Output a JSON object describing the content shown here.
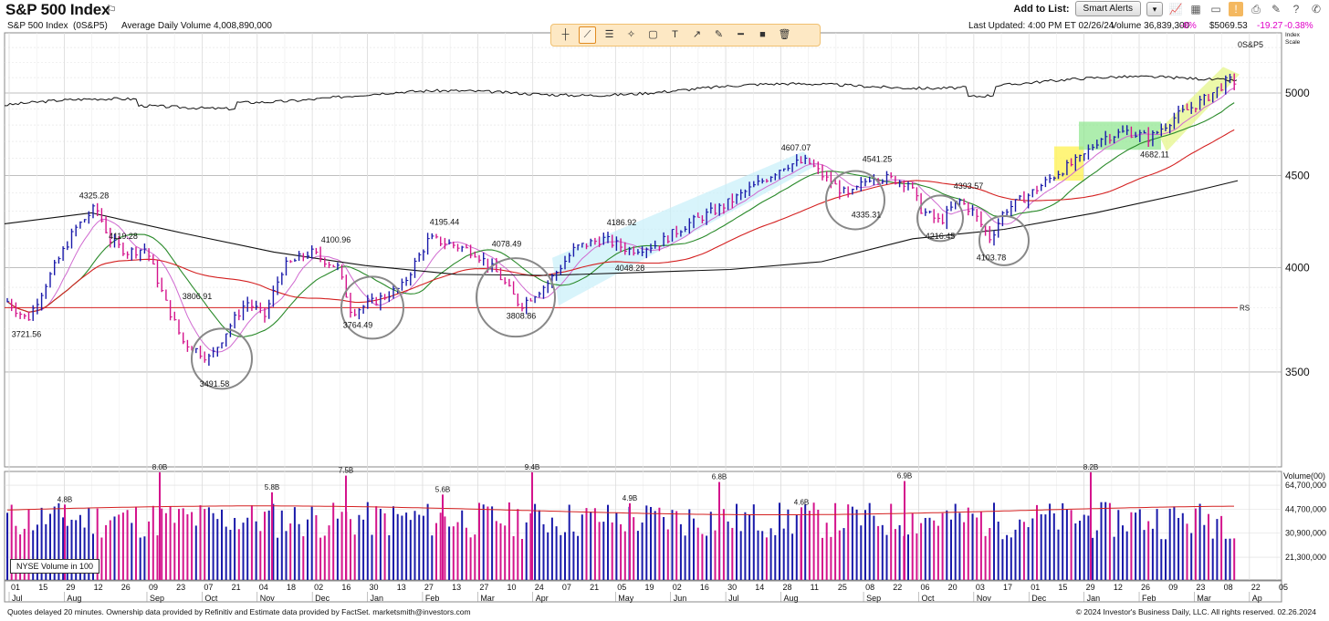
{
  "header": {
    "title": "S&P 500 Index",
    "add_to_list": "Add to List:",
    "smart_alerts": "Smart Alerts"
  },
  "info": {
    "name": "S&P 500 Index",
    "symbol": "(0S&P5)",
    "avg_volume": "Average Daily Volume 4,008,890,000",
    "updated": "Last Updated: 4:00 PM ET 02/26/24",
    "volume": "Volume 36,839,300",
    "vol_pct": "-8%",
    "price": "$5069.53",
    "change": "-19.27",
    "change_pct": "-0.38%"
  },
  "colors": {
    "up": "#1a1aaa",
    "down": "#d4148c",
    "ma10": "#d06ad0",
    "ma21": "#2a8a2a",
    "ma50": "#d42020",
    "ma200": "#111111",
    "accent": "#ff00ff"
  },
  "chart_data": {
    "type": "candlestick",
    "y_scale": "log",
    "ylim": [
      3100,
      5400
    ],
    "y_ticks": [
      "5000",
      "4500",
      "4000",
      "3500"
    ],
    "scale_labels": [
      "0S&P5",
      "Index",
      "Scale"
    ],
    "x_tick_labels": [
      "01",
      "15",
      "29",
      "12",
      "26",
      "09",
      "23",
      "07",
      "21",
      "04",
      "18",
      "02",
      "16",
      "30",
      "13",
      "27",
      "13",
      "27",
      "10",
      "24",
      "07",
      "21",
      "05",
      "19",
      "02",
      "16",
      "30",
      "14",
      "28",
      "11",
      "25",
      "08",
      "22",
      "06",
      "20",
      "03",
      "17",
      "01",
      "15",
      "29",
      "12",
      "26",
      "09",
      "23",
      "08",
      "22",
      "05"
    ],
    "month_labels": [
      "Jul",
      "Aug",
      "Sep",
      "Oct",
      "Nov",
      "Dec",
      "Jan",
      "Feb",
      "Mar",
      "Apr",
      "May",
      "Jun",
      "Jul",
      "Aug",
      "Sep",
      "Oct",
      "Nov",
      "Dec",
      "Jan",
      "Feb",
      "Mar",
      "Ap"
    ],
    "price_labels": [
      {
        "text": "3721.56",
        "value": 3721.56
      },
      {
        "text": "4325.28",
        "value": 4325.28
      },
      {
        "text": "4119.28",
        "value": 4119.28
      },
      {
        "text": "3806.91",
        "value": 3806.91
      },
      {
        "text": "3491.58",
        "value": 3491.58
      },
      {
        "text": "4100.96",
        "value": 4100.96
      },
      {
        "text": "3764.49",
        "value": 3764.49
      },
      {
        "text": "4195.44",
        "value": 4195.44
      },
      {
        "text": "4078.49",
        "value": 4078.49
      },
      {
        "text": "3808.86",
        "value": 3808.86
      },
      {
        "text": "4186.92",
        "value": 4186.92
      },
      {
        "text": "4048.28",
        "value": 4048.28
      },
      {
        "text": "4607.07",
        "value": 4607.07
      },
      {
        "text": "4541.25",
        "value": 4541.25
      },
      {
        "text": "4335.31",
        "value": 4335.31
      },
      {
        "text": "4393.57",
        "value": 4393.57
      },
      {
        "text": "4216.45",
        "value": 4216.45
      },
      {
        "text": "4103.78",
        "value": 4103.78
      },
      {
        "text": "4682.11",
        "value": 4682.11
      }
    ],
    "rs_label": "RS",
    "volume_panel": {
      "label": "Volume(00)",
      "ticks": [
        "64,700,000",
        "44,700,000",
        "30,900,000",
        "21,300,000"
      ],
      "peaks": [
        "4.8B",
        "8.0B",
        "5.8B",
        "7.5B",
        "5.6B",
        "9.4B",
        "4.9B",
        "6.8B",
        "4.6B",
        "6.9B",
        "8.2B"
      ],
      "legend": "NYSE Volume in 100"
    }
  },
  "footer": {
    "left": "Quotes delayed 20 minutes. Ownership data provided by Refinitiv and Estimate data provided by FactSet. marketsmith@investors.com",
    "right": "© 2024 Investor's Business Daily, LLC. All rights reserved.     02.26.2024"
  }
}
